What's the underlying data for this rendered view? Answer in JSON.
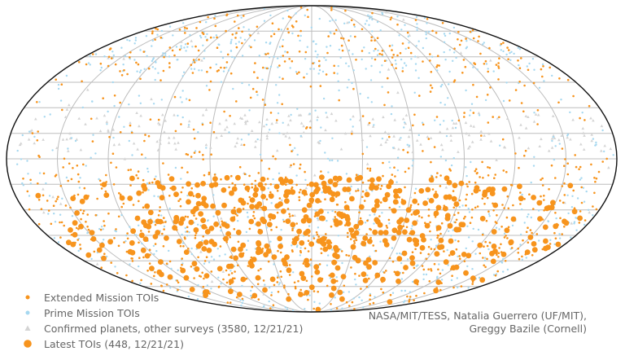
{
  "chart_data": {
    "type": "scatter",
    "projection": "mollweide",
    "grid": true,
    "legend_position": "bottom-left",
    "series": [
      {
        "name": "Extended Mission TOIs",
        "color": "#f7941d",
        "marker": "circle",
        "size": "small"
      },
      {
        "name": "Prime Mission TOIs",
        "color": "#a6d8f0",
        "marker": "circle",
        "size": "small"
      },
      {
        "name": "Confirmed planets, other surveys (3580, 12/21/21)",
        "color": "#d4d4d4",
        "marker": "triangle",
        "size": "small"
      },
      {
        "name": "Latest TOIs (448, 12/21/21)",
        "color": "#f7941d",
        "marker": "circle",
        "size": "large"
      }
    ]
  },
  "credits": {
    "line1": "NASA/MIT/TESS, Natalia Guerrero (UF/MIT),",
    "line2": "Greggy Bazile (Cornell)"
  }
}
